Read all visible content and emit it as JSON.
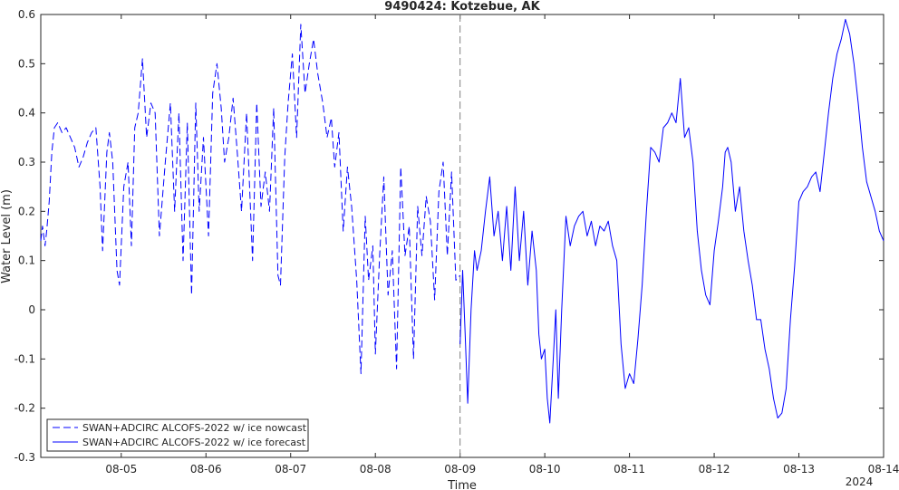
{
  "chart_data": {
    "type": "line",
    "title": "9490424: Kotzebue, AK",
    "xlabel": "Time",
    "ylabel": "Water Level (m)",
    "ylim": [
      -0.3,
      0.6
    ],
    "yticks": [
      "-0.3",
      "-0.2",
      "-0.1",
      "0",
      "0.1",
      "0.2",
      "0.3",
      "0.4",
      "0.5",
      "0.6"
    ],
    "xlim_day": [
      4.05,
      14.0
    ],
    "xticks": [
      "08-05",
      "08-06",
      "08-07",
      "08-08",
      "08-09",
      "08-10",
      "08-11",
      "08-12",
      "08-13",
      "08-14"
    ],
    "x_year_label": "2024",
    "divider_day": 9.0,
    "legend": {
      "placement": "bottom-left",
      "entries": [
        "SWAN+ADCIRC ALCOFS-2022 w/ ice nowcast",
        "SWAN+ADCIRC ALCOFS-2022 w/ ice forecast"
      ]
    },
    "series": [
      {
        "name": "SWAN+ADCIRC ALCOFS-2022 w/ ice nowcast",
        "style": "dashed",
        "color": "#0000ff",
        "x": [
          4.05,
          4.07,
          4.1,
          4.12,
          4.15,
          4.18,
          4.21,
          4.25,
          4.3,
          4.35,
          4.4,
          4.45,
          4.5,
          4.55,
          4.6,
          4.65,
          4.7,
          4.75,
          4.78,
          4.8,
          4.83,
          4.86,
          4.9,
          4.95,
          4.98,
          5.03,
          5.08,
          5.12,
          5.16,
          5.2,
          5.25,
          5.3,
          5.35,
          5.4,
          5.45,
          5.52,
          5.58,
          5.63,
          5.68,
          5.73,
          5.78,
          5.83,
          5.88,
          5.92,
          5.97,
          6.03,
          6.08,
          6.13,
          6.18,
          6.22,
          6.27,
          6.32,
          6.37,
          6.42,
          6.48,
          6.55,
          6.6,
          6.65,
          6.7,
          6.75,
          6.8,
          6.85,
          6.88,
          6.93,
          6.97,
          7.02,
          7.07,
          7.12,
          7.17,
          7.22,
          7.27,
          7.32,
          7.38,
          7.43,
          7.48,
          7.52,
          7.57,
          7.62,
          7.67,
          7.72,
          7.78,
          7.83,
          7.88,
          7.92,
          7.97,
          8.0,
          8.05,
          8.1,
          8.15,
          8.2,
          8.25,
          8.3,
          8.35,
          8.4,
          8.45,
          8.5,
          8.55,
          8.6,
          8.65,
          8.7,
          8.75,
          8.8,
          8.85,
          8.9,
          8.95,
          9.0
        ],
        "y": [
          0.14,
          0.17,
          0.13,
          0.16,
          0.22,
          0.32,
          0.37,
          0.38,
          0.36,
          0.37,
          0.35,
          0.33,
          0.29,
          0.31,
          0.34,
          0.36,
          0.37,
          0.25,
          0.12,
          0.2,
          0.32,
          0.36,
          0.3,
          0.08,
          0.05,
          0.25,
          0.3,
          0.13,
          0.37,
          0.4,
          0.51,
          0.35,
          0.42,
          0.4,
          0.15,
          0.3,
          0.42,
          0.2,
          0.4,
          0.1,
          0.38,
          0.03,
          0.42,
          0.2,
          0.35,
          0.15,
          0.44,
          0.5,
          0.41,
          0.3,
          0.35,
          0.43,
          0.32,
          0.2,
          0.4,
          0.1,
          0.42,
          0.21,
          0.28,
          0.2,
          0.41,
          0.07,
          0.05,
          0.31,
          0.42,
          0.52,
          0.35,
          0.58,
          0.44,
          0.5,
          0.55,
          0.48,
          0.42,
          0.35,
          0.39,
          0.29,
          0.36,
          0.16,
          0.29,
          0.21,
          0.06,
          -0.13,
          0.19,
          0.06,
          0.13,
          -0.09,
          0.11,
          0.27,
          0.03,
          0.12,
          -0.12,
          0.29,
          0.11,
          0.17,
          -0.1,
          0.21,
          0.11,
          0.23,
          0.18,
          0.02,
          0.24,
          0.3,
          0.11,
          0.28,
          0.06,
          0.07
        ]
      },
      {
        "name": "SWAN+ADCIRC ALCOFS-2022 w/ ice forecast",
        "style": "solid",
        "color": "#0000ff",
        "x": [
          9.0,
          9.03,
          9.06,
          9.09,
          9.13,
          9.17,
          9.2,
          9.25,
          9.3,
          9.35,
          9.4,
          9.45,
          9.5,
          9.55,
          9.6,
          9.65,
          9.7,
          9.75,
          9.8,
          9.85,
          9.9,
          9.93,
          9.96,
          10.0,
          10.03,
          10.06,
          10.1,
          10.13,
          10.16,
          10.2,
          10.25,
          10.3,
          10.35,
          10.4,
          10.45,
          10.5,
          10.55,
          10.6,
          10.65,
          10.7,
          10.75,
          10.8,
          10.85,
          10.9,
          10.95,
          11.0,
          11.05,
          11.1,
          11.15,
          11.2,
          11.25,
          11.3,
          11.35,
          11.4,
          11.45,
          11.5,
          11.55,
          11.6,
          11.65,
          11.7,
          11.75,
          11.8,
          11.85,
          11.9,
          11.95,
          12.0,
          12.05,
          12.1,
          12.13,
          12.16,
          12.2,
          12.25,
          12.3,
          12.35,
          12.4,
          12.45,
          12.5,
          12.55,
          12.6,
          12.65,
          12.7,
          12.75,
          12.8,
          12.85,
          12.9,
          12.95,
          13.0,
          13.05,
          13.1,
          13.15,
          13.2,
          13.25,
          13.3,
          13.35,
          13.4,
          13.45,
          13.5,
          13.55,
          13.6,
          13.65,
          13.7,
          13.75,
          13.8,
          13.85,
          13.9,
          13.95,
          14.0
        ],
        "y": [
          -0.07,
          0.08,
          -0.05,
          -0.19,
          0.0,
          0.12,
          0.08,
          0.12,
          0.2,
          0.27,
          0.15,
          0.2,
          0.1,
          0.21,
          0.08,
          0.25,
          0.1,
          0.2,
          0.05,
          0.16,
          0.08,
          -0.05,
          -0.1,
          -0.08,
          -0.18,
          -0.23,
          -0.1,
          0.0,
          -0.18,
          0.0,
          0.19,
          0.13,
          0.17,
          0.19,
          0.2,
          0.15,
          0.18,
          0.13,
          0.17,
          0.16,
          0.18,
          0.13,
          0.1,
          -0.07,
          -0.16,
          -0.13,
          -0.15,
          -0.06,
          0.05,
          0.2,
          0.33,
          0.32,
          0.3,
          0.37,
          0.38,
          0.4,
          0.38,
          0.47,
          0.35,
          0.37,
          0.3,
          0.16,
          0.08,
          0.03,
          0.01,
          0.12,
          0.18,
          0.25,
          0.32,
          0.33,
          0.3,
          0.2,
          0.25,
          0.16,
          0.1,
          0.05,
          -0.02,
          -0.02,
          -0.08,
          -0.12,
          -0.18,
          -0.22,
          -0.21,
          -0.16,
          -0.02,
          0.09,
          0.22,
          0.24,
          0.25,
          0.27,
          0.28,
          0.24,
          0.32,
          0.4,
          0.47,
          0.52,
          0.55,
          0.59,
          0.56,
          0.5,
          0.42,
          0.33,
          0.26,
          0.23,
          0.2,
          0.16,
          0.14
        ]
      }
    ]
  }
}
